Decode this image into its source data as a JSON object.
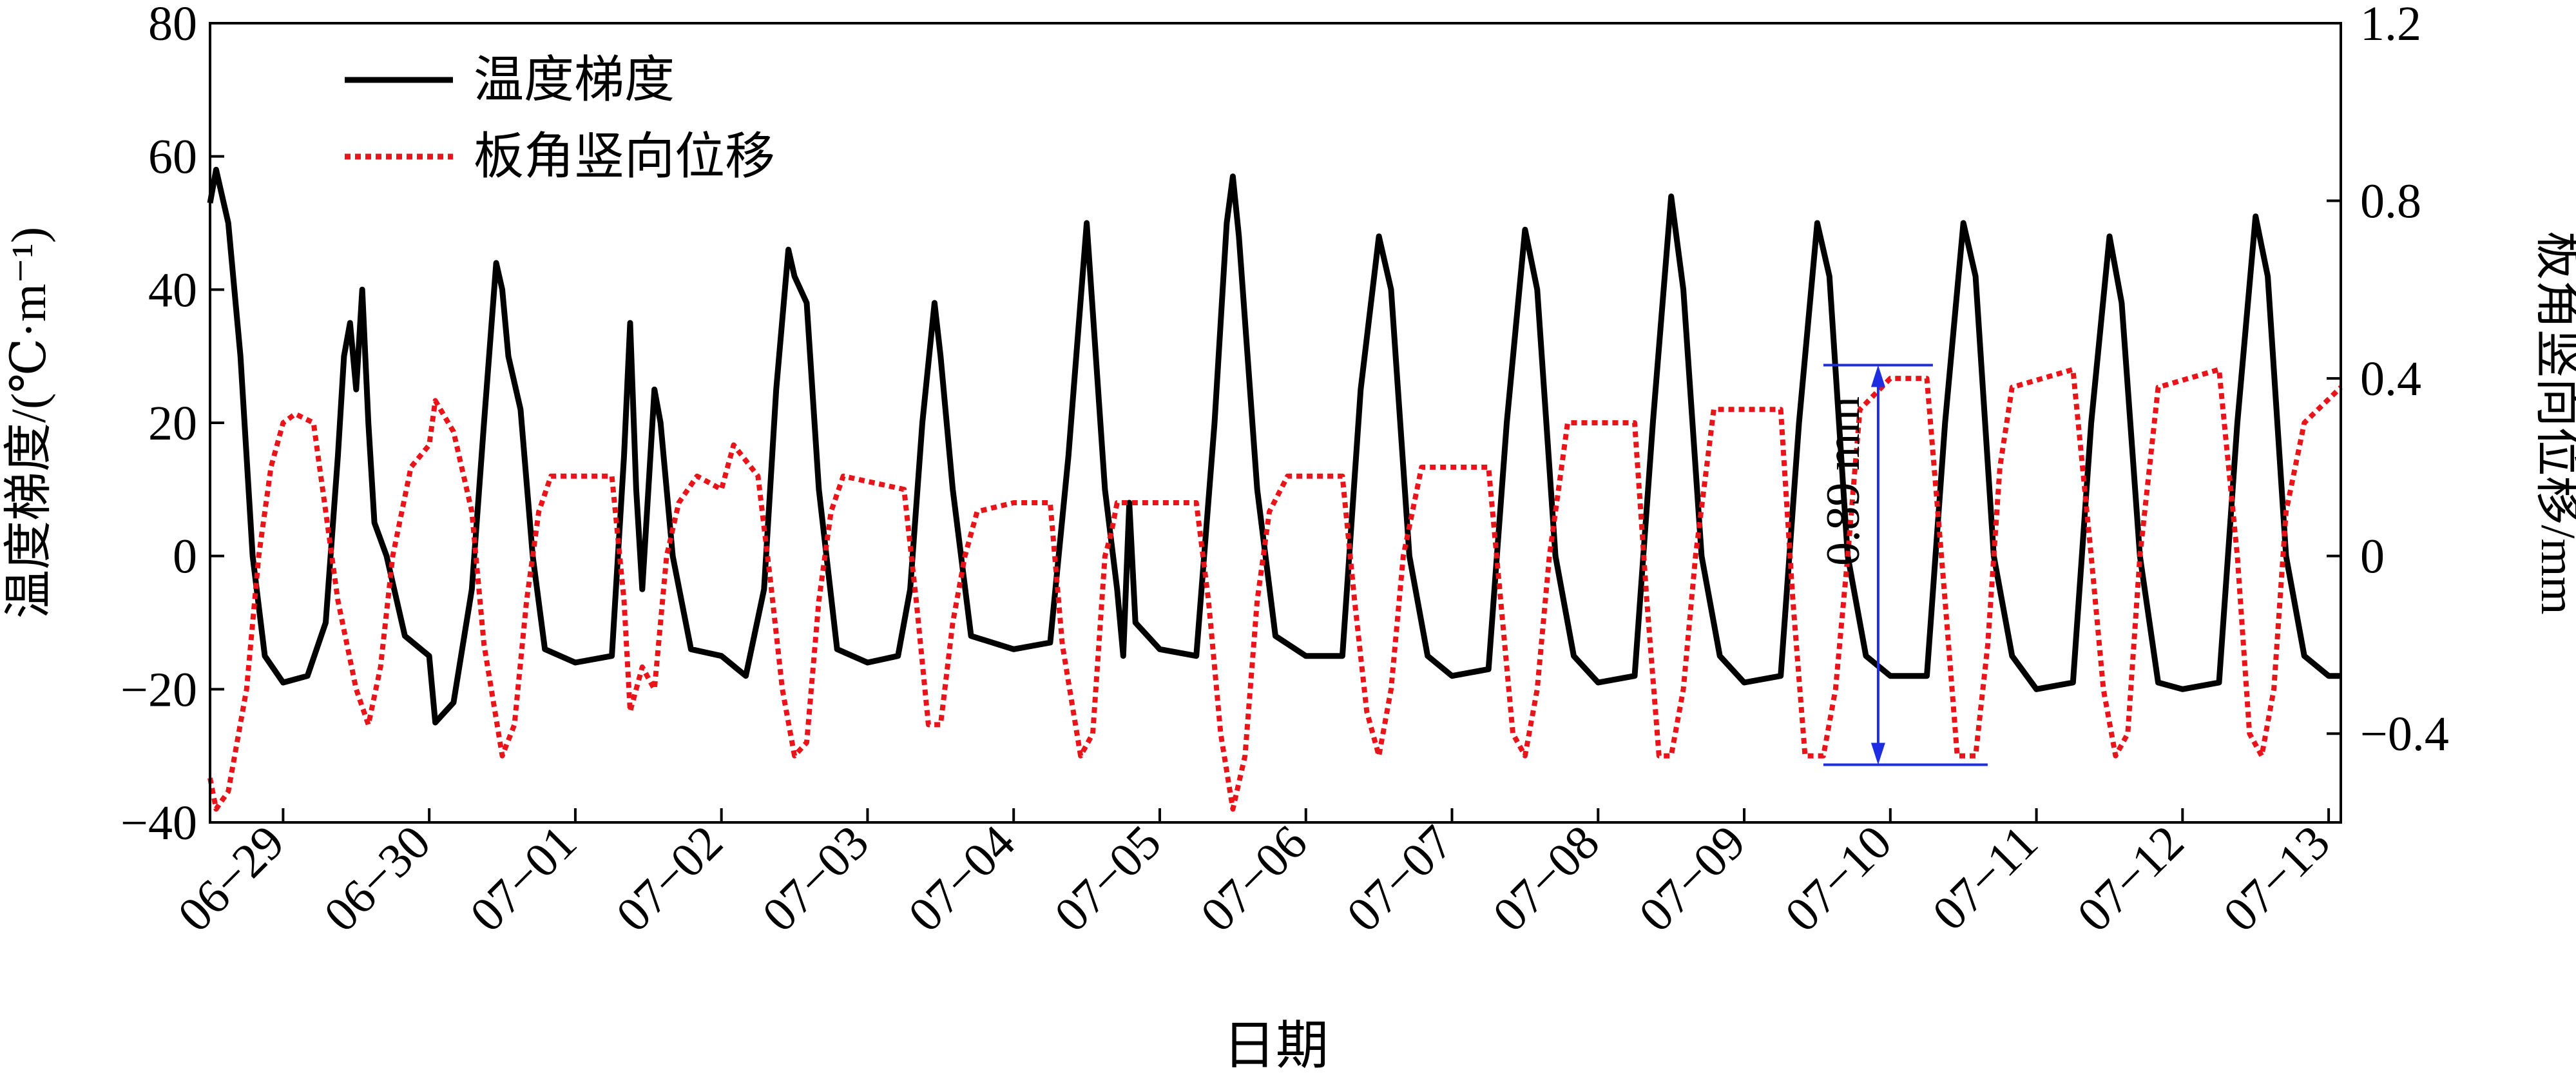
{
  "chart_data": {
    "type": "line",
    "xlabel": "日期",
    "ylabel_left": "温度梯度/(℃·m⁻¹)",
    "ylabel_right": "板角竖向位移/mm",
    "x_range": [
      "2023-06-28T12:00",
      "2023-07-13T02:00"
    ],
    "y_left_range": [
      -40,
      80
    ],
    "y_right_range": [
      -0.6,
      1.2
    ],
    "y_left_ticks": [
      -40,
      -20,
      0,
      20,
      40,
      60,
      80
    ],
    "y_right_ticks": [
      -0.4,
      0,
      0.4,
      0.8,
      1.2
    ],
    "x_ticks": [
      "06-29",
      "06-30",
      "07-01",
      "07-02",
      "07-03",
      "07-04",
      "07-05",
      "07-06",
      "07-07",
      "07-08",
      "07-09",
      "07-10",
      "07-11",
      "07-12",
      "07-13"
    ],
    "x_tick_date_labels": [
      "06−29",
      "06−30",
      "07−01",
      "07−02",
      "07−03",
      "07−04",
      "07−05",
      "07−06",
      "07−07",
      "07−08",
      "07−09",
      "07−10",
      "07−11",
      "07−12",
      "07−13"
    ],
    "legend_position": "top-left",
    "grid": false,
    "series": [
      {
        "name": "温度梯度",
        "axis": "left",
        "color": "#000000",
        "style": "solid",
        "points": [
          [
            "06-28 12:00",
            53
          ],
          [
            "06-28 13:00",
            58
          ],
          [
            "06-28 15:00",
            50
          ],
          [
            "06-28 17:00",
            30
          ],
          [
            "06-28 19:00",
            0
          ],
          [
            "06-28 21:00",
            -15
          ],
          [
            "06-29 00:00",
            -19
          ],
          [
            "06-29 04:00",
            -18
          ],
          [
            "06-29 07:00",
            -10
          ],
          [
            "06-29 09:00",
            15
          ],
          [
            "06-29 10:00",
            30
          ],
          [
            "06-29 11:00",
            35
          ],
          [
            "06-29 12:00",
            25
          ],
          [
            "06-29 13:00",
            40
          ],
          [
            "06-29 14:00",
            20
          ],
          [
            "06-29 15:00",
            5
          ],
          [
            "06-29 17:00",
            0
          ],
          [
            "06-29 20:00",
            -12
          ],
          [
            "06-30 00:00",
            -15
          ],
          [
            "06-30 01:00",
            -25
          ],
          [
            "06-30 04:00",
            -22
          ],
          [
            "06-30 07:00",
            -5
          ],
          [
            "06-30 09:00",
            20
          ],
          [
            "06-30 11:00",
            44
          ],
          [
            "06-30 12:00",
            40
          ],
          [
            "06-30 13:00",
            30
          ],
          [
            "06-30 15:00",
            22
          ],
          [
            "06-30 17:00",
            0
          ],
          [
            "06-30 19:00",
            -14
          ],
          [
            "07-01 00:00",
            -16
          ],
          [
            "07-01 06:00",
            -15
          ],
          [
            "07-01 08:00",
            15
          ],
          [
            "07-01 09:00",
            35
          ],
          [
            "07-01 10:00",
            10
          ],
          [
            "07-01 11:00",
            -5
          ],
          [
            "07-01 12:00",
            10
          ],
          [
            "07-01 13:00",
            25
          ],
          [
            "07-01 14:00",
            20
          ],
          [
            "07-01 16:00",
            0
          ],
          [
            "07-01 19:00",
            -14
          ],
          [
            "07-02 00:00",
            -15
          ],
          [
            "07-02 04:00",
            -18
          ],
          [
            "07-02 07:00",
            -5
          ],
          [
            "07-02 09:00",
            25
          ],
          [
            "07-02 11:00",
            46
          ],
          [
            "07-02 12:00",
            42
          ],
          [
            "07-02 14:00",
            38
          ],
          [
            "07-02 16:00",
            10
          ],
          [
            "07-02 19:00",
            -14
          ],
          [
            "07-03 00:00",
            -16
          ],
          [
            "07-03 05:00",
            -15
          ],
          [
            "07-03 07:00",
            -5
          ],
          [
            "07-03 09:00",
            20
          ],
          [
            "07-03 11:00",
            38
          ],
          [
            "07-03 12:00",
            30
          ],
          [
            "07-03 14:00",
            10
          ],
          [
            "07-03 17:00",
            -12
          ],
          [
            "07-04 00:00",
            -14
          ],
          [
            "07-04 06:00",
            -13
          ],
          [
            "07-04 09:00",
            15
          ],
          [
            "07-04 12:00",
            50
          ],
          [
            "07-04 15:00",
            10
          ],
          [
            "07-04 17:00",
            -5
          ],
          [
            "07-04 18:00",
            -15
          ],
          [
            "07-04 19:00",
            8
          ],
          [
            "07-04 20:00",
            -10
          ],
          [
            "07-05 00:00",
            -14
          ],
          [
            "07-05 06:00",
            -15
          ],
          [
            "07-05 09:00",
            20
          ],
          [
            "07-05 11:00",
            50
          ],
          [
            "07-05 12:00",
            57
          ],
          [
            "07-05 13:00",
            48
          ],
          [
            "07-05 16:00",
            10
          ],
          [
            "07-05 19:00",
            -12
          ],
          [
            "07-06 00:00",
            -15
          ],
          [
            "07-06 06:00",
            -15
          ],
          [
            "07-06 09:00",
            25
          ],
          [
            "07-06 12:00",
            48
          ],
          [
            "07-06 14:00",
            40
          ],
          [
            "07-06 17:00",
            0
          ],
          [
            "07-06 20:00",
            -15
          ],
          [
            "07-07 00:00",
            -18
          ],
          [
            "07-07 06:00",
            -17
          ],
          [
            "07-07 09:00",
            20
          ],
          [
            "07-07 12:00",
            49
          ],
          [
            "07-07 14:00",
            40
          ],
          [
            "07-07 17:00",
            0
          ],
          [
            "07-07 20:00",
            -15
          ],
          [
            "07-08 00:00",
            -19
          ],
          [
            "07-08 06:00",
            -18
          ],
          [
            "07-08 09:00",
            20
          ],
          [
            "07-08 12:00",
            54
          ],
          [
            "07-08 14:00",
            40
          ],
          [
            "07-08 17:00",
            0
          ],
          [
            "07-08 20:00",
            -15
          ],
          [
            "07-09 00:00",
            -19
          ],
          [
            "07-09 06:00",
            -18
          ],
          [
            "07-09 09:00",
            20
          ],
          [
            "07-09 12:00",
            50
          ],
          [
            "07-09 14:00",
            42
          ],
          [
            "07-09 17:00",
            0
          ],
          [
            "07-09 20:00",
            -15
          ],
          [
            "07-10 00:00",
            -18
          ],
          [
            "07-10 06:00",
            -18
          ],
          [
            "07-10 09:00",
            20
          ],
          [
            "07-10 12:00",
            50
          ],
          [
            "07-10 14:00",
            42
          ],
          [
            "07-10 17:00",
            0
          ],
          [
            "07-10 20:00",
            -15
          ],
          [
            "07-11 00:00",
            -20
          ],
          [
            "07-11 06:00",
            -19
          ],
          [
            "07-11 09:00",
            20
          ],
          [
            "07-11 12:00",
            48
          ],
          [
            "07-11 14:00",
            38
          ],
          [
            "07-11 17:00",
            0
          ],
          [
            "07-11 20:00",
            -19
          ],
          [
            "07-12 00:00",
            -20
          ],
          [
            "07-12 06:00",
            -19
          ],
          [
            "07-12 09:00",
            20
          ],
          [
            "07-12 12:00",
            51
          ],
          [
            "07-12 14:00",
            42
          ],
          [
            "07-12 17:00",
            0
          ],
          [
            "07-12 20:00",
            -15
          ],
          [
            "07-13 00:00",
            -18
          ],
          [
            "07-13 02:00",
            -18
          ]
        ]
      },
      {
        "name": "板角竖向位移",
        "axis": "right",
        "color": "#e8141a",
        "style": "dotted",
        "points": [
          [
            "06-28 12:00",
            -0.5
          ],
          [
            "06-28 13:00",
            -0.57
          ],
          [
            "06-28 15:00",
            -0.53
          ],
          [
            "06-28 18:00",
            -0.3
          ],
          [
            "06-28 20:00",
            0
          ],
          [
            "06-28 22:00",
            0.2
          ],
          [
            "06-29 00:00",
            0.3
          ],
          [
            "06-29 02:00",
            0.32
          ],
          [
            "06-29 05:00",
            0.3
          ],
          [
            "06-29 07:00",
            0.1
          ],
          [
            "06-29 09:00",
            -0.1
          ],
          [
            "06-29 12:00",
            -0.3
          ],
          [
            "06-29 14:00",
            -0.38
          ],
          [
            "06-29 16:00",
            -0.25
          ],
          [
            "06-29 18:00",
            0
          ],
          [
            "06-29 21:00",
            0.2
          ],
          [
            "06-30 00:00",
            0.25
          ],
          [
            "06-30 01:00",
            0.35
          ],
          [
            "06-30 04:00",
            0.28
          ],
          [
            "06-30 07:00",
            0.1
          ],
          [
            "06-30 09:00",
            -0.2
          ],
          [
            "06-30 12:00",
            -0.45
          ],
          [
            "06-30 14:00",
            -0.38
          ],
          [
            "06-30 16:00",
            -0.1
          ],
          [
            "06-30 18:00",
            0.1
          ],
          [
            "06-30 20:00",
            0.18
          ],
          [
            "07-01 06:00",
            0.18
          ],
          [
            "07-01 08:00",
            -0.1
          ],
          [
            "07-01 09:00",
            -0.35
          ],
          [
            "07-01 11:00",
            -0.25
          ],
          [
            "07-01 13:00",
            -0.3
          ],
          [
            "07-01 15:00",
            0
          ],
          [
            "07-01 17:00",
            0.12
          ],
          [
            "07-01 20:00",
            0.18
          ],
          [
            "07-02 00:00",
            0.15
          ],
          [
            "07-02 02:00",
            0.25
          ],
          [
            "07-02 06:00",
            0.18
          ],
          [
            "07-02 08:00",
            -0.05
          ],
          [
            "07-02 10:00",
            -0.3
          ],
          [
            "07-02 12:00",
            -0.45
          ],
          [
            "07-02 14:00",
            -0.42
          ],
          [
            "07-02 16:00",
            -0.1
          ],
          [
            "07-02 18:00",
            0.1
          ],
          [
            "07-02 20:00",
            0.18
          ],
          [
            "07-03 06:00",
            0.15
          ],
          [
            "07-03 08:00",
            -0.1
          ],
          [
            "07-03 10:00",
            -0.38
          ],
          [
            "07-03 12:00",
            -0.38
          ],
          [
            "07-03 14:00",
            -0.15
          ],
          [
            "07-03 16:00",
            0
          ],
          [
            "07-03 18:00",
            0.1
          ],
          [
            "07-04 00:00",
            0.12
          ],
          [
            "07-04 06:00",
            0.12
          ],
          [
            "07-04 08:00",
            -0.2
          ],
          [
            "07-04 11:00",
            -0.45
          ],
          [
            "07-04 13:00",
            -0.4
          ],
          [
            "07-04 15:00",
            0
          ],
          [
            "07-04 16:00",
            0.05
          ],
          [
            "07-04 17:00",
            0.12
          ],
          [
            "07-05 06:00",
            0.12
          ],
          [
            "07-05 08:00",
            -0.1
          ],
          [
            "07-05 10:00",
            -0.4
          ],
          [
            "07-05 12:00",
            -0.57
          ],
          [
            "07-05 14:00",
            -0.45
          ],
          [
            "07-05 16:00",
            -0.1
          ],
          [
            "07-05 18:00",
            0.1
          ],
          [
            "07-05 21:00",
            0.18
          ],
          [
            "07-06 06:00",
            0.18
          ],
          [
            "07-06 08:00",
            -0.1
          ],
          [
            "07-06 10:00",
            -0.35
          ],
          [
            "07-06 12:00",
            -0.45
          ],
          [
            "07-06 14:00",
            -0.3
          ],
          [
            "07-06 16:00",
            0
          ],
          [
            "07-06 19:00",
            0.2
          ],
          [
            "07-07 06:00",
            0.2
          ],
          [
            "07-07 08:00",
            -0.1
          ],
          [
            "07-07 10:00",
            -0.4
          ],
          [
            "07-07 12:00",
            -0.45
          ],
          [
            "07-07 14:00",
            -0.3
          ],
          [
            "07-07 16:00",
            0
          ],
          [
            "07-07 19:00",
            0.3
          ],
          [
            "07-08 06:00",
            0.3
          ],
          [
            "07-08 08:00",
            -0.1
          ],
          [
            "07-08 10:00",
            -0.45
          ],
          [
            "07-08 12:00",
            -0.45
          ],
          [
            "07-08 14:00",
            -0.3
          ],
          [
            "07-08 16:00",
            0
          ],
          [
            "07-08 19:00",
            0.33
          ],
          [
            "07-09 06:00",
            0.33
          ],
          [
            "07-09 08:00",
            -0.1
          ],
          [
            "07-09 10:00",
            -0.45
          ],
          [
            "07-09 13:00",
            -0.45
          ],
          [
            "07-09 15:00",
            -0.3
          ],
          [
            "07-09 17:00",
            0
          ],
          [
            "07-09 19:00",
            0.33
          ],
          [
            "07-10 00:00",
            0.4
          ],
          [
            "07-10 06:00",
            0.4
          ],
          [
            "07-10 09:00",
            -0.1
          ],
          [
            "07-10 11:00",
            -0.45
          ],
          [
            "07-10 14:00",
            -0.45
          ],
          [
            "07-10 16:00",
            -0.2
          ],
          [
            "07-10 18:00",
            0.2
          ],
          [
            "07-10 20:00",
            0.38
          ],
          [
            "07-11 06:00",
            0.42
          ],
          [
            "07-11 09:00",
            0
          ],
          [
            "07-11 11:00",
            -0.3
          ],
          [
            "07-11 13:00",
            -0.45
          ],
          [
            "07-11 15:00",
            -0.4
          ],
          [
            "07-11 17:00",
            0
          ],
          [
            "07-11 20:00",
            0.38
          ],
          [
            "07-12 06:00",
            0.42
          ],
          [
            "07-12 09:00",
            0
          ],
          [
            "07-12 11:00",
            -0.4
          ],
          [
            "07-12 13:00",
            -0.45
          ],
          [
            "07-12 15:00",
            -0.3
          ],
          [
            "07-12 17:00",
            0.1
          ],
          [
            "07-12 20:00",
            0.3
          ],
          [
            "07-13 02:00",
            0.38
          ]
        ]
      }
    ],
    "annotation": {
      "text": "0.89 mm",
      "date": "07-09 22:00",
      "y_right_from": -0.47,
      "y_right_to": 0.43,
      "color": "#1f2de0"
    }
  }
}
